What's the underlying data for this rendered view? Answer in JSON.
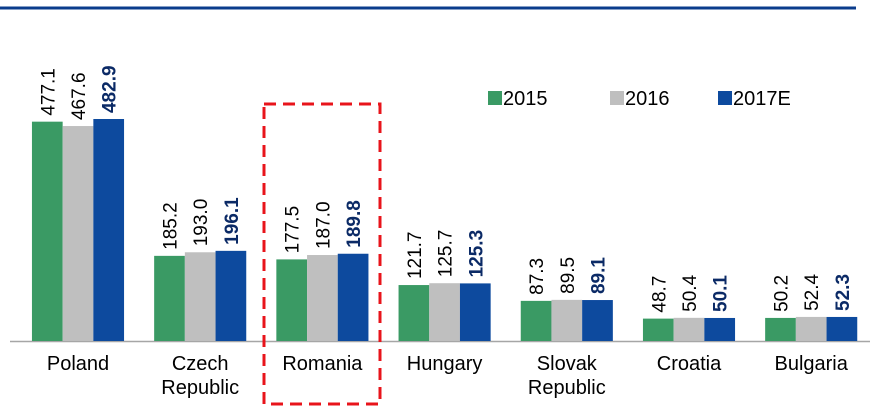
{
  "chart_data": {
    "type": "bar",
    "categories": [
      "Poland",
      "Czech Republic",
      "Romania",
      "Hungary",
      "Slovak Republic",
      "Croatia",
      "Bulgaria"
    ],
    "series": [
      {
        "name": "2015",
        "color": "#3a9a64",
        "values": [
          477.1,
          185.2,
          177.5,
          121.7,
          87.3,
          48.7,
          50.2
        ],
        "value_labels": [
          "477.1",
          "185.2",
          "177.5",
          "121.7",
          "87.3",
          "48.7",
          "50.2"
        ]
      },
      {
        "name": "2016",
        "color": "#bfbfbf",
        "values": [
          467.6,
          193.0,
          187.0,
          125.7,
          89.5,
          50.4,
          52.4
        ],
        "value_labels": [
          "467.6",
          "193.0",
          "187.0",
          "125.7",
          "89.5",
          "50.4",
          "52.4"
        ]
      },
      {
        "name": "2017E",
        "color": "#0d4a9e",
        "values": [
          482.9,
          196.1,
          189.8,
          125.3,
          89.1,
          50.1,
          52.3
        ],
        "value_labels": [
          "482.9",
          "196.1",
          "189.8",
          "125.3",
          "89.1",
          "50.1",
          "52.3"
        ]
      }
    ]
  }
}
